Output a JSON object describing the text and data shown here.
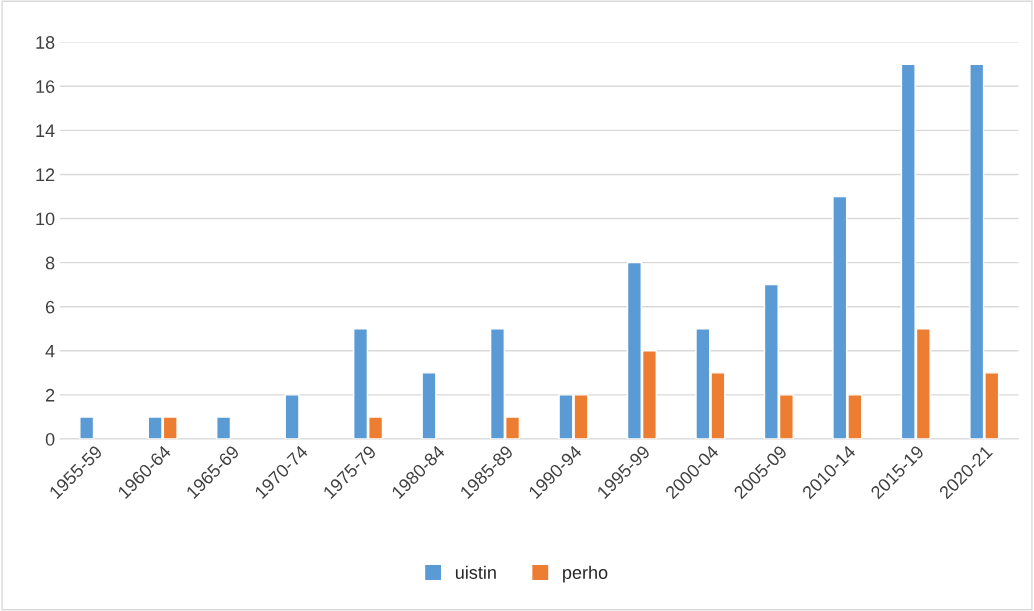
{
  "chart_data": {
    "type": "bar",
    "categories": [
      "1955-59",
      "1960-64",
      "1965-69",
      "1970-74",
      "1975-79",
      "1980-84",
      "1985-89",
      "1990-94",
      "1995-99",
      "2000-04",
      "2005-09",
      "2010-14",
      "2015-19",
      "2020-21"
    ],
    "series": [
      {
        "name": "uistin",
        "color": "#5b9bd5",
        "values": [
          1,
          1,
          1,
          2,
          5,
          3,
          5,
          2,
          8,
          5,
          7,
          11,
          17,
          17
        ]
      },
      {
        "name": "perho",
        "color": "#ed7d31",
        "values": [
          null,
          1,
          null,
          null,
          1,
          null,
          1,
          2,
          4,
          3,
          2,
          2,
          5,
          3
        ]
      }
    ],
    "ylim": [
      0,
      18
    ],
    "yticks": [
      0,
      2,
      4,
      6,
      8,
      10,
      12,
      14,
      16,
      18
    ],
    "grid": "y",
    "legend": "bottom"
  }
}
